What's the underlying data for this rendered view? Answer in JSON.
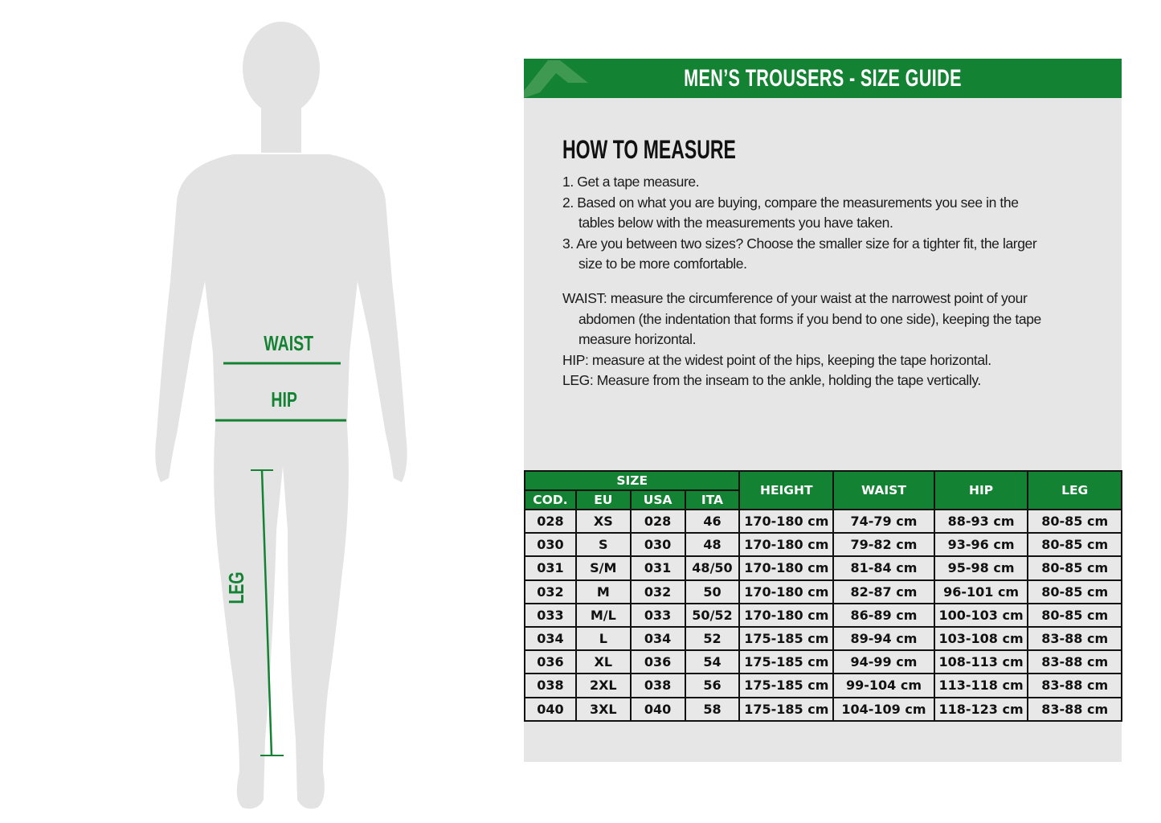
{
  "figure": {
    "labels": {
      "waist": "WAIST",
      "hip": "HIP",
      "leg": "LEG"
    },
    "line_color": "#138232",
    "body_color": "#e3e3e3"
  },
  "banner": {
    "title": "MEN’S TROUSERS - SIZE GUIDE",
    "color": "#138232",
    "logo": "brand-a-logo"
  },
  "instructions": {
    "heading": "HOW TO MEASURE",
    "steps": [
      "1. Get a tape measure.",
      "2. Based on what you are buying, compare the measurements you see in the",
      "tables below with the measurements you have taken.",
      "3. Are you between two sizes? Choose the smaller size for a tighter fit, the larger",
      "size to be more comfortable."
    ],
    "definitions": [
      "WAIST: measure the circumference of your waist at the narrowest point of your",
      "abdomen (the indentation that forms if you bend to one side), keeping the tape",
      "measure horizontal.",
      "HIP: measure at the widest point of the hips, keeping the tape horizontal.",
      "LEG: Measure from the inseam to the ankle, holding the tape vertically."
    ]
  },
  "table": {
    "group_header": "SIZE",
    "sub_headers": [
      "COD.",
      "EU",
      "USA",
      "ITA"
    ],
    "headers": [
      "HEIGHT",
      "WAIST",
      "HIP",
      "LEG"
    ],
    "rows": [
      [
        "028",
        "XS",
        "028",
        "46",
        "170-180 cm",
        "74-79 cm",
        "88-93 cm",
        "80-85 cm"
      ],
      [
        "030",
        "S",
        "030",
        "48",
        "170-180 cm",
        "79-82 cm",
        "93-96 cm",
        "80-85 cm"
      ],
      [
        "031",
        "S/M",
        "031",
        "48/50",
        "170-180 cm",
        "81-84 cm",
        "95-98 cm",
        "80-85 cm"
      ],
      [
        "032",
        "M",
        "032",
        "50",
        "170-180 cm",
        "82-87 cm",
        "96-101 cm",
        "80-85 cm"
      ],
      [
        "033",
        "M/L",
        "033",
        "50/52",
        "170-180 cm",
        "86-89 cm",
        "100-103 cm",
        "80-85 cm"
      ],
      [
        "034",
        "L",
        "034",
        "52",
        "175-185 cm",
        "89-94 cm",
        "103-108 cm",
        "83-88 cm"
      ],
      [
        "036",
        "XL",
        "036",
        "54",
        "175-185 cm",
        "94-99 cm",
        "108-113 cm",
        "83-88 cm"
      ],
      [
        "038",
        "2XL",
        "038",
        "56",
        "175-185 cm",
        "99-104 cm",
        "113-118 cm",
        "83-88 cm"
      ],
      [
        "040",
        "3XL",
        "040",
        "58",
        "175-185 cm",
        "104-109 cm",
        "118-123 cm",
        "83-88 cm"
      ]
    ]
  }
}
